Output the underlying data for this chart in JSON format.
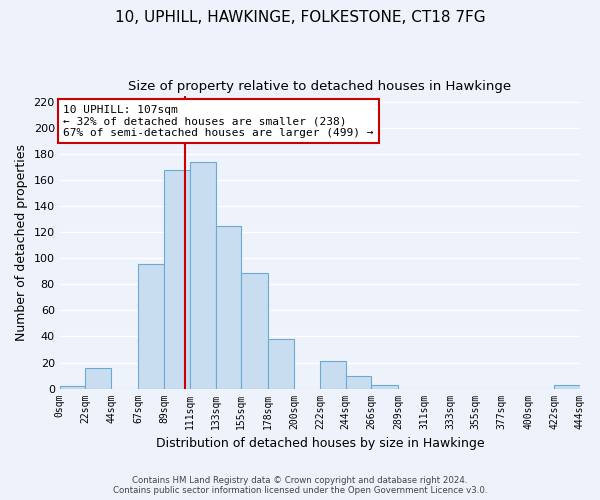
{
  "title": "10, UPHILL, HAWKINGE, FOLKESTONE, CT18 7FG",
  "subtitle": "Size of property relative to detached houses in Hawkinge",
  "xlabel": "Distribution of detached houses by size in Hawkinge",
  "ylabel": "Number of detached properties",
  "bar_color": "#c8ddf0",
  "bar_edge_color": "#6aaad4",
  "bin_edges": [
    0,
    22,
    44,
    67,
    89,
    111,
    133,
    155,
    178,
    200,
    222,
    244,
    266,
    289,
    311,
    333,
    355,
    377,
    400,
    422,
    444
  ],
  "bar_heights": [
    2,
    16,
    0,
    96,
    168,
    174,
    125,
    89,
    38,
    0,
    21,
    10,
    3,
    0,
    0,
    0,
    0,
    0,
    0,
    3
  ],
  "tick_labels": [
    "0sqm",
    "22sqm",
    "44sqm",
    "67sqm",
    "89sqm",
    "111sqm",
    "133sqm",
    "155sqm",
    "178sqm",
    "200sqm",
    "222sqm",
    "244sqm",
    "266sqm",
    "289sqm",
    "311sqm",
    "333sqm",
    "355sqm",
    "377sqm",
    "400sqm",
    "422sqm",
    "444sqm"
  ],
  "ylim": [
    0,
    225
  ],
  "yticks": [
    0,
    20,
    40,
    60,
    80,
    100,
    120,
    140,
    160,
    180,
    200,
    220
  ],
  "property_line_x": 107,
  "annotation_title": "10 UPHILL: 107sqm",
  "annotation_line1": "← 32% of detached houses are smaller (238)",
  "annotation_line2": "67% of semi-detached houses are larger (499) →",
  "footer_line1": "Contains HM Land Registry data © Crown copyright and database right 2024.",
  "footer_line2": "Contains public sector information licensed under the Open Government Licence v3.0.",
  "background_color": "#eef2fb",
  "plot_bg_color": "#eef2fb",
  "grid_color": "#ffffff",
  "title_fontsize": 11,
  "subtitle_fontsize": 9.5,
  "ylabel_fontsize": 9,
  "xlabel_fontsize": 9
}
